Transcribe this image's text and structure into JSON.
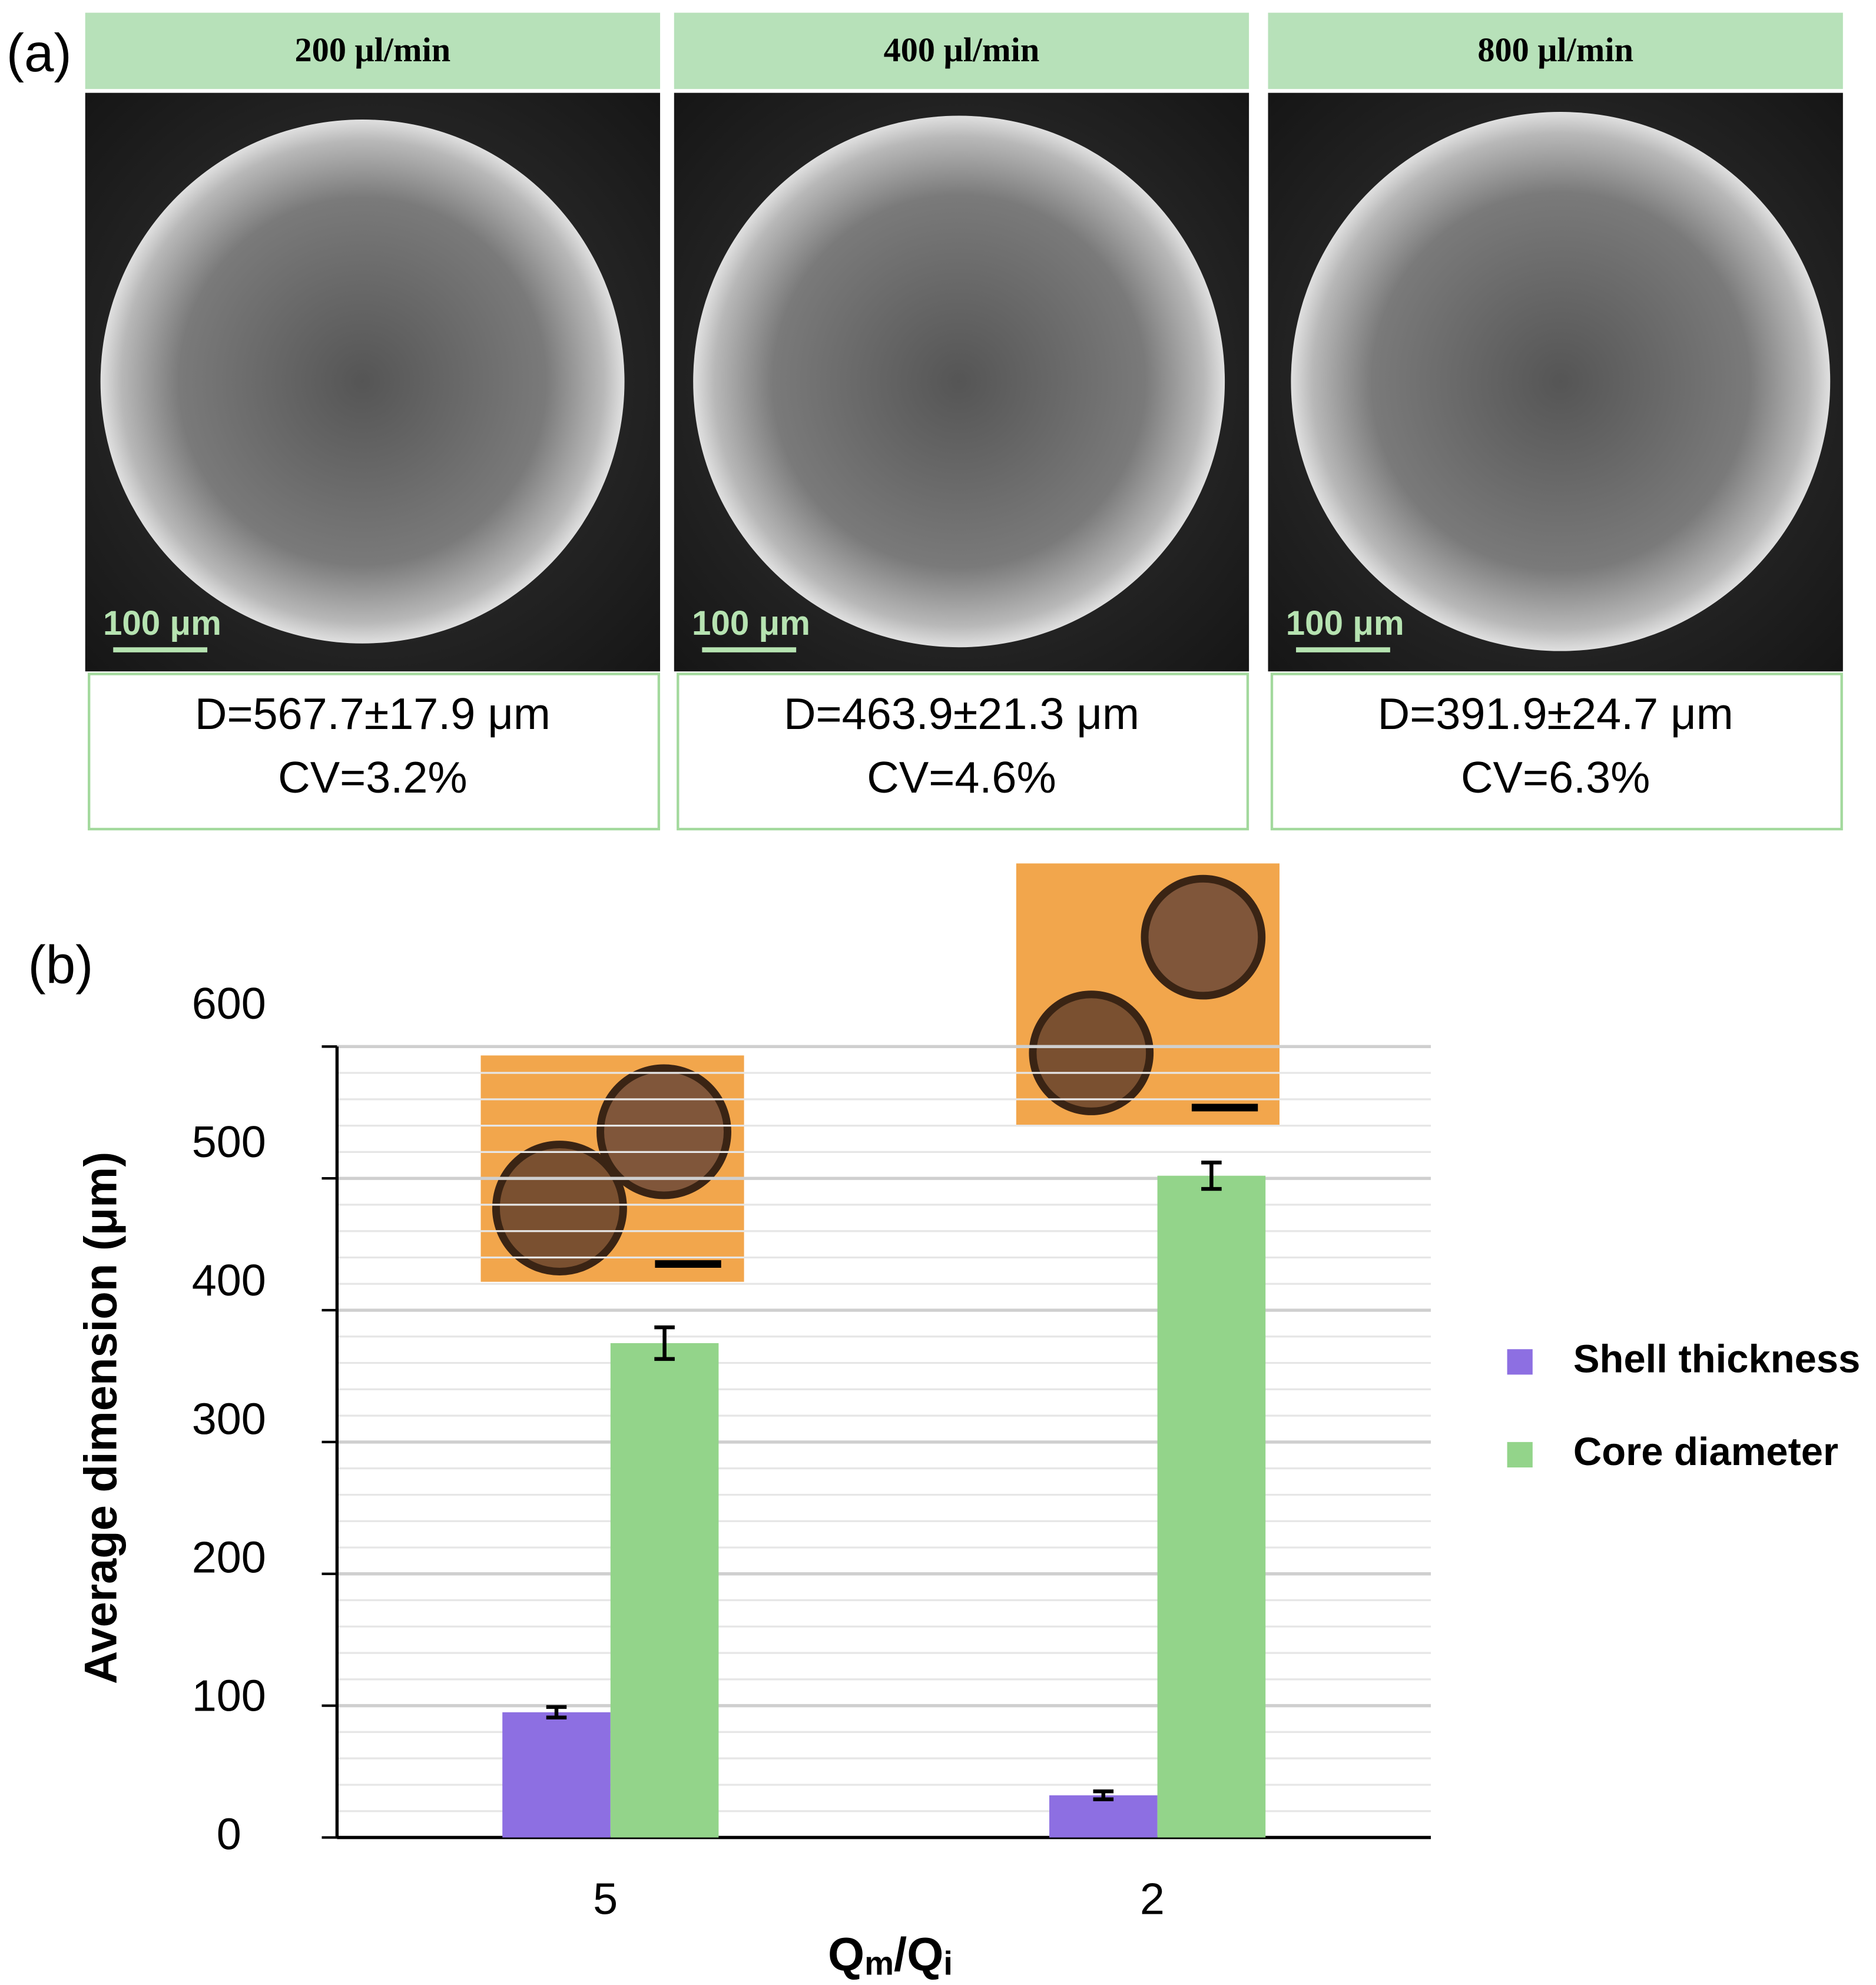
{
  "panel_a": {
    "label": "(a)",
    "panels": [
      {
        "flow_rate": "200 μl/min",
        "scale_bar": "100 μm",
        "diameter": "D=567.7±17.9 μm",
        "cv": "CV=3.2%"
      },
      {
        "flow_rate": "400 μl/min",
        "scale_bar": "100 μm",
        "diameter": "D=463.9±21.3 μm",
        "cv": "CV=4.6%"
      },
      {
        "flow_rate": "800 μl/min",
        "scale_bar": "100 μm",
        "diameter": "D=391.9±24.7 μm",
        "cv": "CV=6.3%"
      }
    ]
  },
  "chart_data": {
    "type": "bar",
    "panel_label": "(b)",
    "ylabel": "Average dimension  (μm)",
    "xlabel": [
      "Q",
      "m",
      "/Q",
      "i"
    ],
    "categories": [
      "5",
      "2"
    ],
    "series": [
      {
        "name": "Shell thickness",
        "color": "#8d6fe2",
        "values": [
          95,
          32
        ],
        "errors": [
          4,
          3
        ]
      },
      {
        "name": "Core diameter",
        "color": "#93d48a",
        "values": [
          375,
          502
        ],
        "errors": [
          12,
          10
        ]
      }
    ],
    "ylim": [
      0,
      600
    ],
    "yticks": [
      0,
      100,
      200,
      300,
      400,
      500,
      600
    ],
    "grid": true,
    "legend": "right"
  }
}
